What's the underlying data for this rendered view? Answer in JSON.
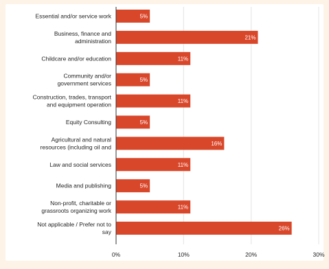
{
  "colors": {
    "background": "#fdf3e7",
    "plot_background": "#ffffff",
    "bar": "#d9472b",
    "gridline": "#e3e3e3",
    "axis_line": "#333333",
    "label_text": "#222222",
    "bar_label_text": "#ffffff"
  },
  "chart_data": {
    "type": "bar",
    "orientation": "horizontal",
    "title": "",
    "xlabel": "",
    "ylabel": "",
    "categories": [
      [
        "Essential and/or service work"
      ],
      [
        "Business, finance and",
        "administration"
      ],
      [
        "Childcare and/or education"
      ],
      [
        "Community and/or",
        "government services"
      ],
      [
        "Construction, trades, transport",
        "and equipment operation"
      ],
      [
        "Equity Consulting"
      ],
      [
        "Agricultural and natural",
        "resources (including oil and"
      ],
      [
        "Law and social services"
      ],
      [
        "Media and publishing"
      ],
      [
        "Non-profit, charitable or",
        "grassroots organizing work"
      ],
      [
        "Not applicable / Prefer not to",
        "say"
      ]
    ],
    "values": [
      5,
      21,
      11,
      5,
      11,
      5,
      16,
      11,
      5,
      11,
      26
    ],
    "value_labels": [
      "5%",
      "21%",
      "11%",
      "5%",
      "11%",
      "5%",
      "16%",
      "11%",
      "5%",
      "11%",
      "26%"
    ],
    "xlim": [
      0,
      30
    ],
    "xticks": [
      0,
      10,
      20,
      30
    ],
    "xtick_labels": [
      "0%",
      "10%",
      "20%",
      "30%"
    ],
    "grid": true
  }
}
